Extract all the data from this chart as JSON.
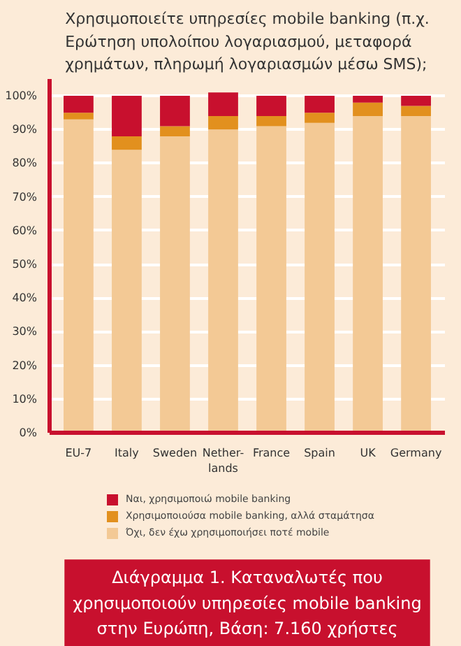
{
  "chart_data": {
    "type": "bar",
    "stacked": true,
    "title": "Χρησιμοποιείτε υπηρεσίες mobile banking (π.χ. Ερώτηση υπολοίπου λογαριασμού, μεταφορά χρημάτων, πληρωμή λογαριασμών μέσω SMS);",
    "categories": [
      "EU-7",
      "Italy",
      "Sweden",
      "Nether-\nlands",
      "France",
      "Spain",
      "UK",
      "Germany"
    ],
    "series": [
      {
        "name": "Όχι, δεν έχω χρησιμοποιήσει ποτέ mobile",
        "color": "#f3c995",
        "values": [
          93,
          84,
          88,
          90,
          91,
          92,
          94,
          94
        ]
      },
      {
        "name": "Χρησιμοποιούσα mobile banking, αλλά σταμάτησα",
        "color": "#e2901e",
        "values": [
          2,
          4,
          3,
          4,
          3,
          3,
          4,
          3
        ]
      },
      {
        "name": "Ναι, χρησιμοποιώ mobile banking",
        "color": "#c8102e",
        "values": [
          5,
          12,
          9,
          7,
          6,
          5,
          2,
          3
        ]
      }
    ],
    "ylim": [
      0,
      105
    ],
    "yticks": [
      {
        "value": 0,
        "label": "0%"
      },
      {
        "value": 10,
        "label": "10%"
      },
      {
        "value": 20,
        "label": "20%"
      },
      {
        "value": 30,
        "label": "30%"
      },
      {
        "value": 40,
        "label": "40%"
      },
      {
        "value": 50,
        "label": "50%"
      },
      {
        "value": 60,
        "label": "60%"
      },
      {
        "value": 70,
        "label": "70%"
      },
      {
        "value": 80,
        "label": "80%"
      },
      {
        "value": 90,
        "label": "90%"
      },
      {
        "value": 100,
        "label": "100%"
      }
    ],
    "grid": "y",
    "legend": "bottom",
    "annotations": [
      "Διάγραμμα 1. Καταναλωτές που χρησιμοποιούν υπηρεσίες mobile banking στην Ευρώπη, Βάση: 7.160 χρήστες"
    ]
  }
}
